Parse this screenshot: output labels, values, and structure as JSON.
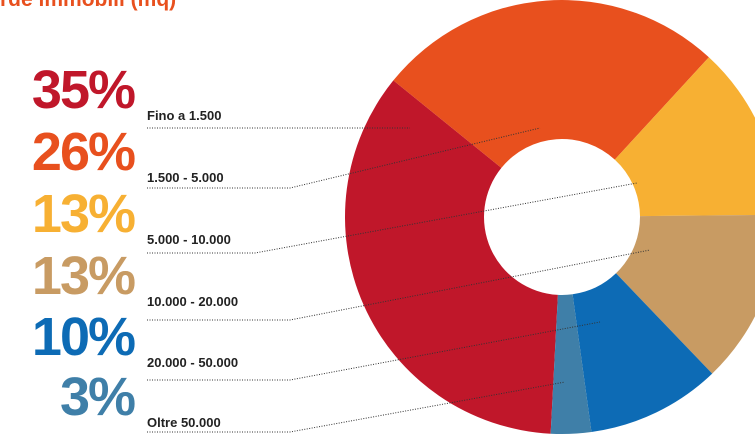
{
  "chart_data": {
    "type": "pie",
    "title": "rde immobili (mq)",
    "categories": [
      "Fino a 1.500",
      "1.500 - 5.000",
      "5.000 - 10.000",
      "10.000 - 20.000",
      "20.000 - 50.000",
      "Oltre 50.000"
    ],
    "values": [
      35,
      26,
      13,
      13,
      10,
      3
    ],
    "value_labels": [
      "35%",
      "26%",
      "13%",
      "13%",
      "10%",
      "3%"
    ],
    "colors": [
      "#c0172a",
      "#e8501e",
      "#f7b033",
      "#c89b63",
      "#0d6bb5",
      "#3f7fa8"
    ],
    "donut": true
  }
}
